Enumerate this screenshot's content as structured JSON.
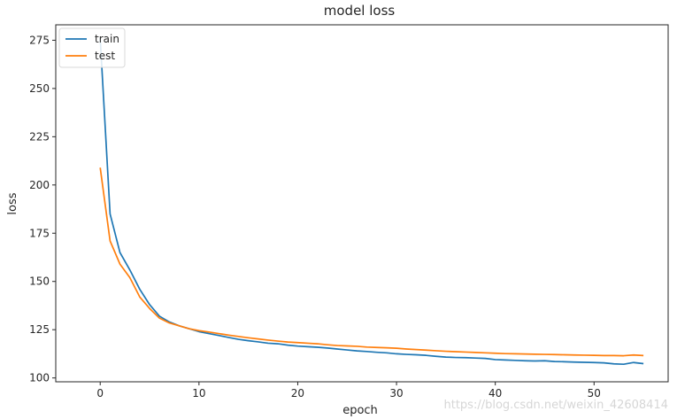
{
  "chart_data": {
    "type": "line",
    "title": "model loss",
    "xlabel": "epoch",
    "ylabel": "loss",
    "xlim": [
      -4.5,
      57.5
    ],
    "ylim": [
      98,
      283
    ],
    "x_ticks": [
      0,
      10,
      20,
      30,
      40,
      50
    ],
    "y_ticks": [
      100,
      125,
      150,
      175,
      200,
      225,
      250,
      275
    ],
    "grid": false,
    "legend_position": "top-left",
    "series": [
      {
        "name": "train",
        "color": "#1f77b4",
        "values": [
          276,
          185,
          165,
          156,
          146,
          138,
          132,
          129,
          127,
          125.5,
          124,
          123,
          122,
          121,
          120,
          119.3,
          118.7,
          118,
          117.7,
          117,
          116.5,
          116.2,
          115.9,
          115.5,
          115,
          114.5,
          114,
          113.7,
          113.3,
          113,
          112.5,
          112.2,
          112,
          111.7,
          111.2,
          110.8,
          110.6,
          110.5,
          110.3,
          110.1,
          109.5,
          109.3,
          109.1,
          108.9,
          108.8,
          108.9,
          108.5,
          108.4,
          108.2,
          108.1,
          108,
          107.8,
          107.3,
          107.1,
          108,
          107.4
        ]
      },
      {
        "name": "test",
        "color": "#ff7f0e",
        "values": [
          209,
          171,
          159,
          152,
          142,
          136,
          131,
          128.5,
          127,
          125.5,
          124.5,
          123.8,
          123,
          122.2,
          121.5,
          120.8,
          120.2,
          119.6,
          119.1,
          118.6,
          118.3,
          118,
          117.7,
          117.2,
          116.8,
          116.6,
          116.4,
          116,
          115.8,
          115.6,
          115.4,
          115,
          114.7,
          114.4,
          114.1,
          113.8,
          113.6,
          113.4,
          113.2,
          113,
          112.8,
          112.6,
          112.5,
          112.4,
          112.3,
          112.2,
          112.1,
          112,
          111.9,
          111.8,
          111.7,
          111.6,
          111.6,
          111.5,
          111.9,
          111.6
        ]
      }
    ]
  },
  "watermark": "https://blog.csdn.net/weixin_42608414"
}
